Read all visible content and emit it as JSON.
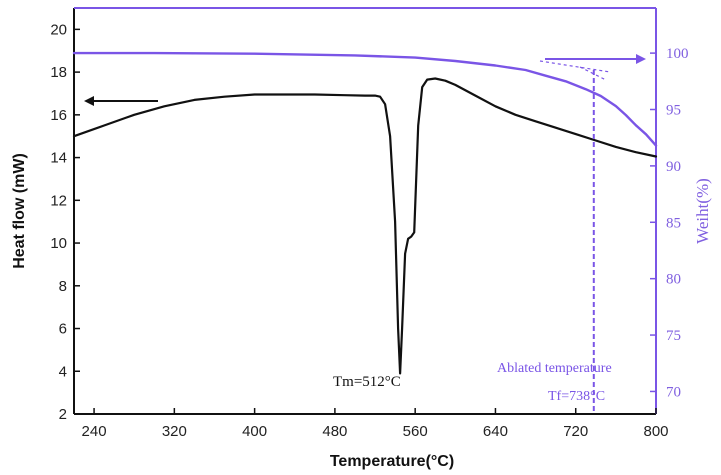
{
  "chart_data": {
    "type": "line",
    "xlabel": "Temperature(°C)",
    "ylabel_left": "Heat flow (mW)",
    "ylabel_right": "Weiht(%)",
    "xlim": [
      220,
      800
    ],
    "ylim_left": [
      2,
      21
    ],
    "ylim_right": [
      68,
      104
    ],
    "x_ticks": [
      240,
      320,
      400,
      480,
      560,
      640,
      720,
      800
    ],
    "y_left_ticks": [
      2,
      4,
      6,
      8,
      10,
      12,
      14,
      16,
      18,
      20
    ],
    "y_right_ticks": [
      70,
      75,
      80,
      85,
      90,
      95,
      100
    ],
    "series": [
      {
        "axis": "left",
        "color": "#111111",
        "x": [
          220,
          250,
          280,
          310,
          340,
          370,
          400,
          430,
          460,
          490,
          510,
          520,
          525,
          530,
          535,
          540,
          543,
          545,
          547,
          550,
          553,
          556,
          559,
          563,
          567,
          572,
          580,
          590,
          600,
          620,
          640,
          660,
          680,
          700,
          720,
          740,
          760,
          780,
          800
        ],
        "y": [
          15.0,
          15.5,
          16.0,
          16.4,
          16.7,
          16.85,
          16.95,
          16.95,
          16.95,
          16.92,
          16.9,
          16.9,
          16.85,
          16.5,
          15.0,
          11.0,
          6.0,
          3.9,
          6.0,
          9.5,
          10.2,
          10.3,
          10.5,
          15.5,
          17.3,
          17.65,
          17.7,
          17.6,
          17.4,
          16.9,
          16.4,
          16.0,
          15.7,
          15.4,
          15.1,
          14.8,
          14.5,
          14.25,
          14.05
        ]
      },
      {
        "axis": "right",
        "color": "#7a55e6",
        "x": [
          220,
          300,
          400,
          500,
          560,
          600,
          640,
          670,
          690,
          710,
          730,
          745,
          760,
          770,
          780,
          790,
          800
        ],
        "y": [
          100.0,
          100.0,
          99.95,
          99.8,
          99.6,
          99.3,
          98.9,
          98.5,
          98.0,
          97.5,
          96.8,
          96.2,
          95.3,
          94.5,
          93.6,
          92.8,
          91.8
        ]
      }
    ],
    "annotations": {
      "tm": "Tm=512°C",
      "ablated": "Ablated temperature",
      "tf": "Tf=738°C",
      "tf_x": 738
    }
  }
}
